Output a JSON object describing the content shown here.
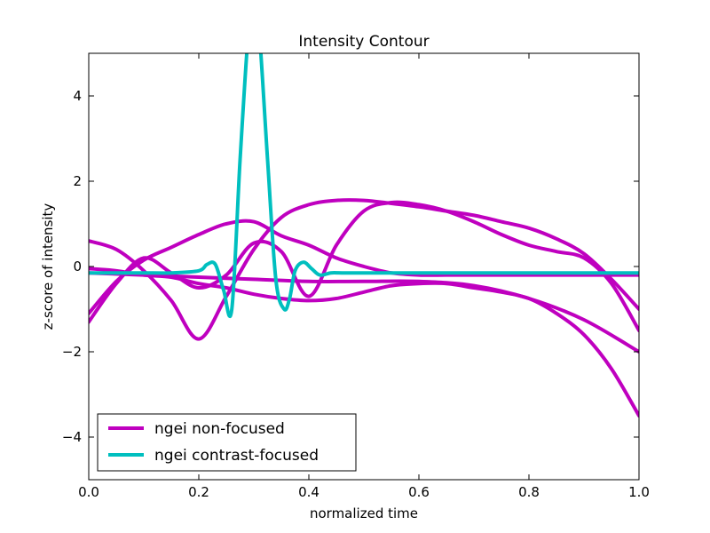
{
  "chart_data": {
    "type": "line",
    "title": "Intensity Contour",
    "xlabel": "normalized time",
    "ylabel": "z-score of intensity",
    "xlim": [
      0.0,
      1.0
    ],
    "ylim": [
      -5,
      5
    ],
    "xticks": [
      "0.0",
      "0.2",
      "0.4",
      "0.6",
      "0.8",
      "1.0"
    ],
    "yticks": [
      "−4",
      "−2",
      "0",
      "2",
      "4"
    ],
    "grid": false,
    "legend_position": "lower-left",
    "legend": [
      {
        "label": "ngei non-focused",
        "color": "#bf00bf"
      },
      {
        "label": "ngei contrast-focused",
        "color": "#00bfbf"
      }
    ],
    "series": [
      {
        "name": "ngei non-focused",
        "color": "#bf00bf",
        "x": [
          0.0,
          0.05,
          0.1,
          0.15,
          0.2,
          0.25,
          0.3,
          0.35,
          0.4,
          0.45,
          0.5,
          0.55,
          0.6,
          0.65,
          0.7,
          0.75,
          0.8,
          0.85,
          0.9,
          0.95,
          1.0
        ],
        "y": [
          -1.1,
          -0.35,
          0.15,
          0.45,
          0.75,
          1.0,
          1.05,
          0.72,
          0.5,
          0.2,
          0.0,
          -0.15,
          -0.2,
          -0.2,
          -0.2,
          -0.2,
          -0.2,
          -0.2,
          -0.2,
          -0.2,
          -0.2
        ]
      },
      {
        "name": "ngei non-focused",
        "color": "#bf00bf",
        "x": [
          0.0,
          0.05,
          0.1,
          0.15,
          0.2,
          0.25,
          0.3,
          0.35,
          0.4,
          0.45,
          0.5,
          0.55,
          0.6,
          0.65,
          0.7,
          0.75,
          0.8,
          0.85,
          0.9,
          0.95,
          1.0
        ],
        "y": [
          -1.3,
          -0.4,
          0.2,
          -0.15,
          -0.5,
          -0.2,
          0.55,
          0.35,
          -0.7,
          0.5,
          1.3,
          1.5,
          1.45,
          1.3,
          1.05,
          0.75,
          0.5,
          0.35,
          0.2,
          -0.4,
          -1.5
        ]
      },
      {
        "name": "ngei non-focused",
        "color": "#bf00bf",
        "x": [
          0.0,
          0.05,
          0.1,
          0.15,
          0.2,
          0.25,
          0.3,
          0.35,
          0.4,
          0.45,
          0.5,
          0.55,
          0.6,
          0.65,
          0.7,
          0.75,
          0.8,
          0.85,
          0.9,
          0.95,
          1.0
        ],
        "y": [
          0.6,
          0.4,
          -0.1,
          -0.8,
          -1.7,
          -0.7,
          0.4,
          1.15,
          1.45,
          1.55,
          1.55,
          1.48,
          1.4,
          1.3,
          1.2,
          1.05,
          0.9,
          0.65,
          0.3,
          -0.3,
          -1.0
        ]
      },
      {
        "name": "ngei non-focused",
        "color": "#bf00bf",
        "x": [
          0.0,
          0.05,
          0.1,
          0.15,
          0.2,
          0.25,
          0.3,
          0.35,
          0.4,
          0.45,
          0.5,
          0.55,
          0.6,
          0.65,
          0.7,
          0.75,
          0.8,
          0.85,
          0.9,
          0.95,
          1.0
        ],
        "y": [
          -0.05,
          -0.1,
          -0.2,
          -0.25,
          -0.4,
          -0.5,
          -0.65,
          -0.75,
          -0.8,
          -0.75,
          -0.6,
          -0.45,
          -0.4,
          -0.4,
          -0.5,
          -0.6,
          -0.75,
          -1.1,
          -1.6,
          -2.4,
          -3.5
        ]
      },
      {
        "name": "ngei non-focused",
        "color": "#bf00bf",
        "x": [
          0.0,
          0.1,
          0.2,
          0.3,
          0.4,
          0.5,
          0.6,
          0.7,
          0.8,
          0.9,
          1.0
        ],
        "y": [
          -0.15,
          -0.2,
          -0.25,
          -0.3,
          -0.35,
          -0.35,
          -0.35,
          -0.45,
          -0.75,
          -1.25,
          -2.0
        ]
      },
      {
        "name": "ngei contrast-focused",
        "color": "#00bfbf",
        "x": [
          0.0,
          0.05,
          0.1,
          0.15,
          0.2,
          0.215,
          0.23,
          0.245,
          0.26,
          0.275,
          0.29,
          0.3,
          0.31,
          0.325,
          0.34,
          0.355,
          0.365,
          0.375,
          0.39,
          0.405,
          0.42,
          0.44,
          0.46,
          0.5,
          0.6,
          0.7,
          0.8,
          0.9,
          1.0
        ],
        "y": [
          -0.15,
          -0.15,
          -0.15,
          -0.15,
          -0.1,
          0.05,
          0.05,
          -0.55,
          -1.0,
          2.5,
          5.5,
          6.5,
          5.5,
          2.5,
          -0.3,
          -1.0,
          -0.75,
          -0.1,
          0.1,
          -0.05,
          -0.2,
          -0.15,
          -0.15,
          -0.15,
          -0.15,
          -0.15,
          -0.15,
          -0.15,
          -0.15
        ]
      }
    ]
  }
}
